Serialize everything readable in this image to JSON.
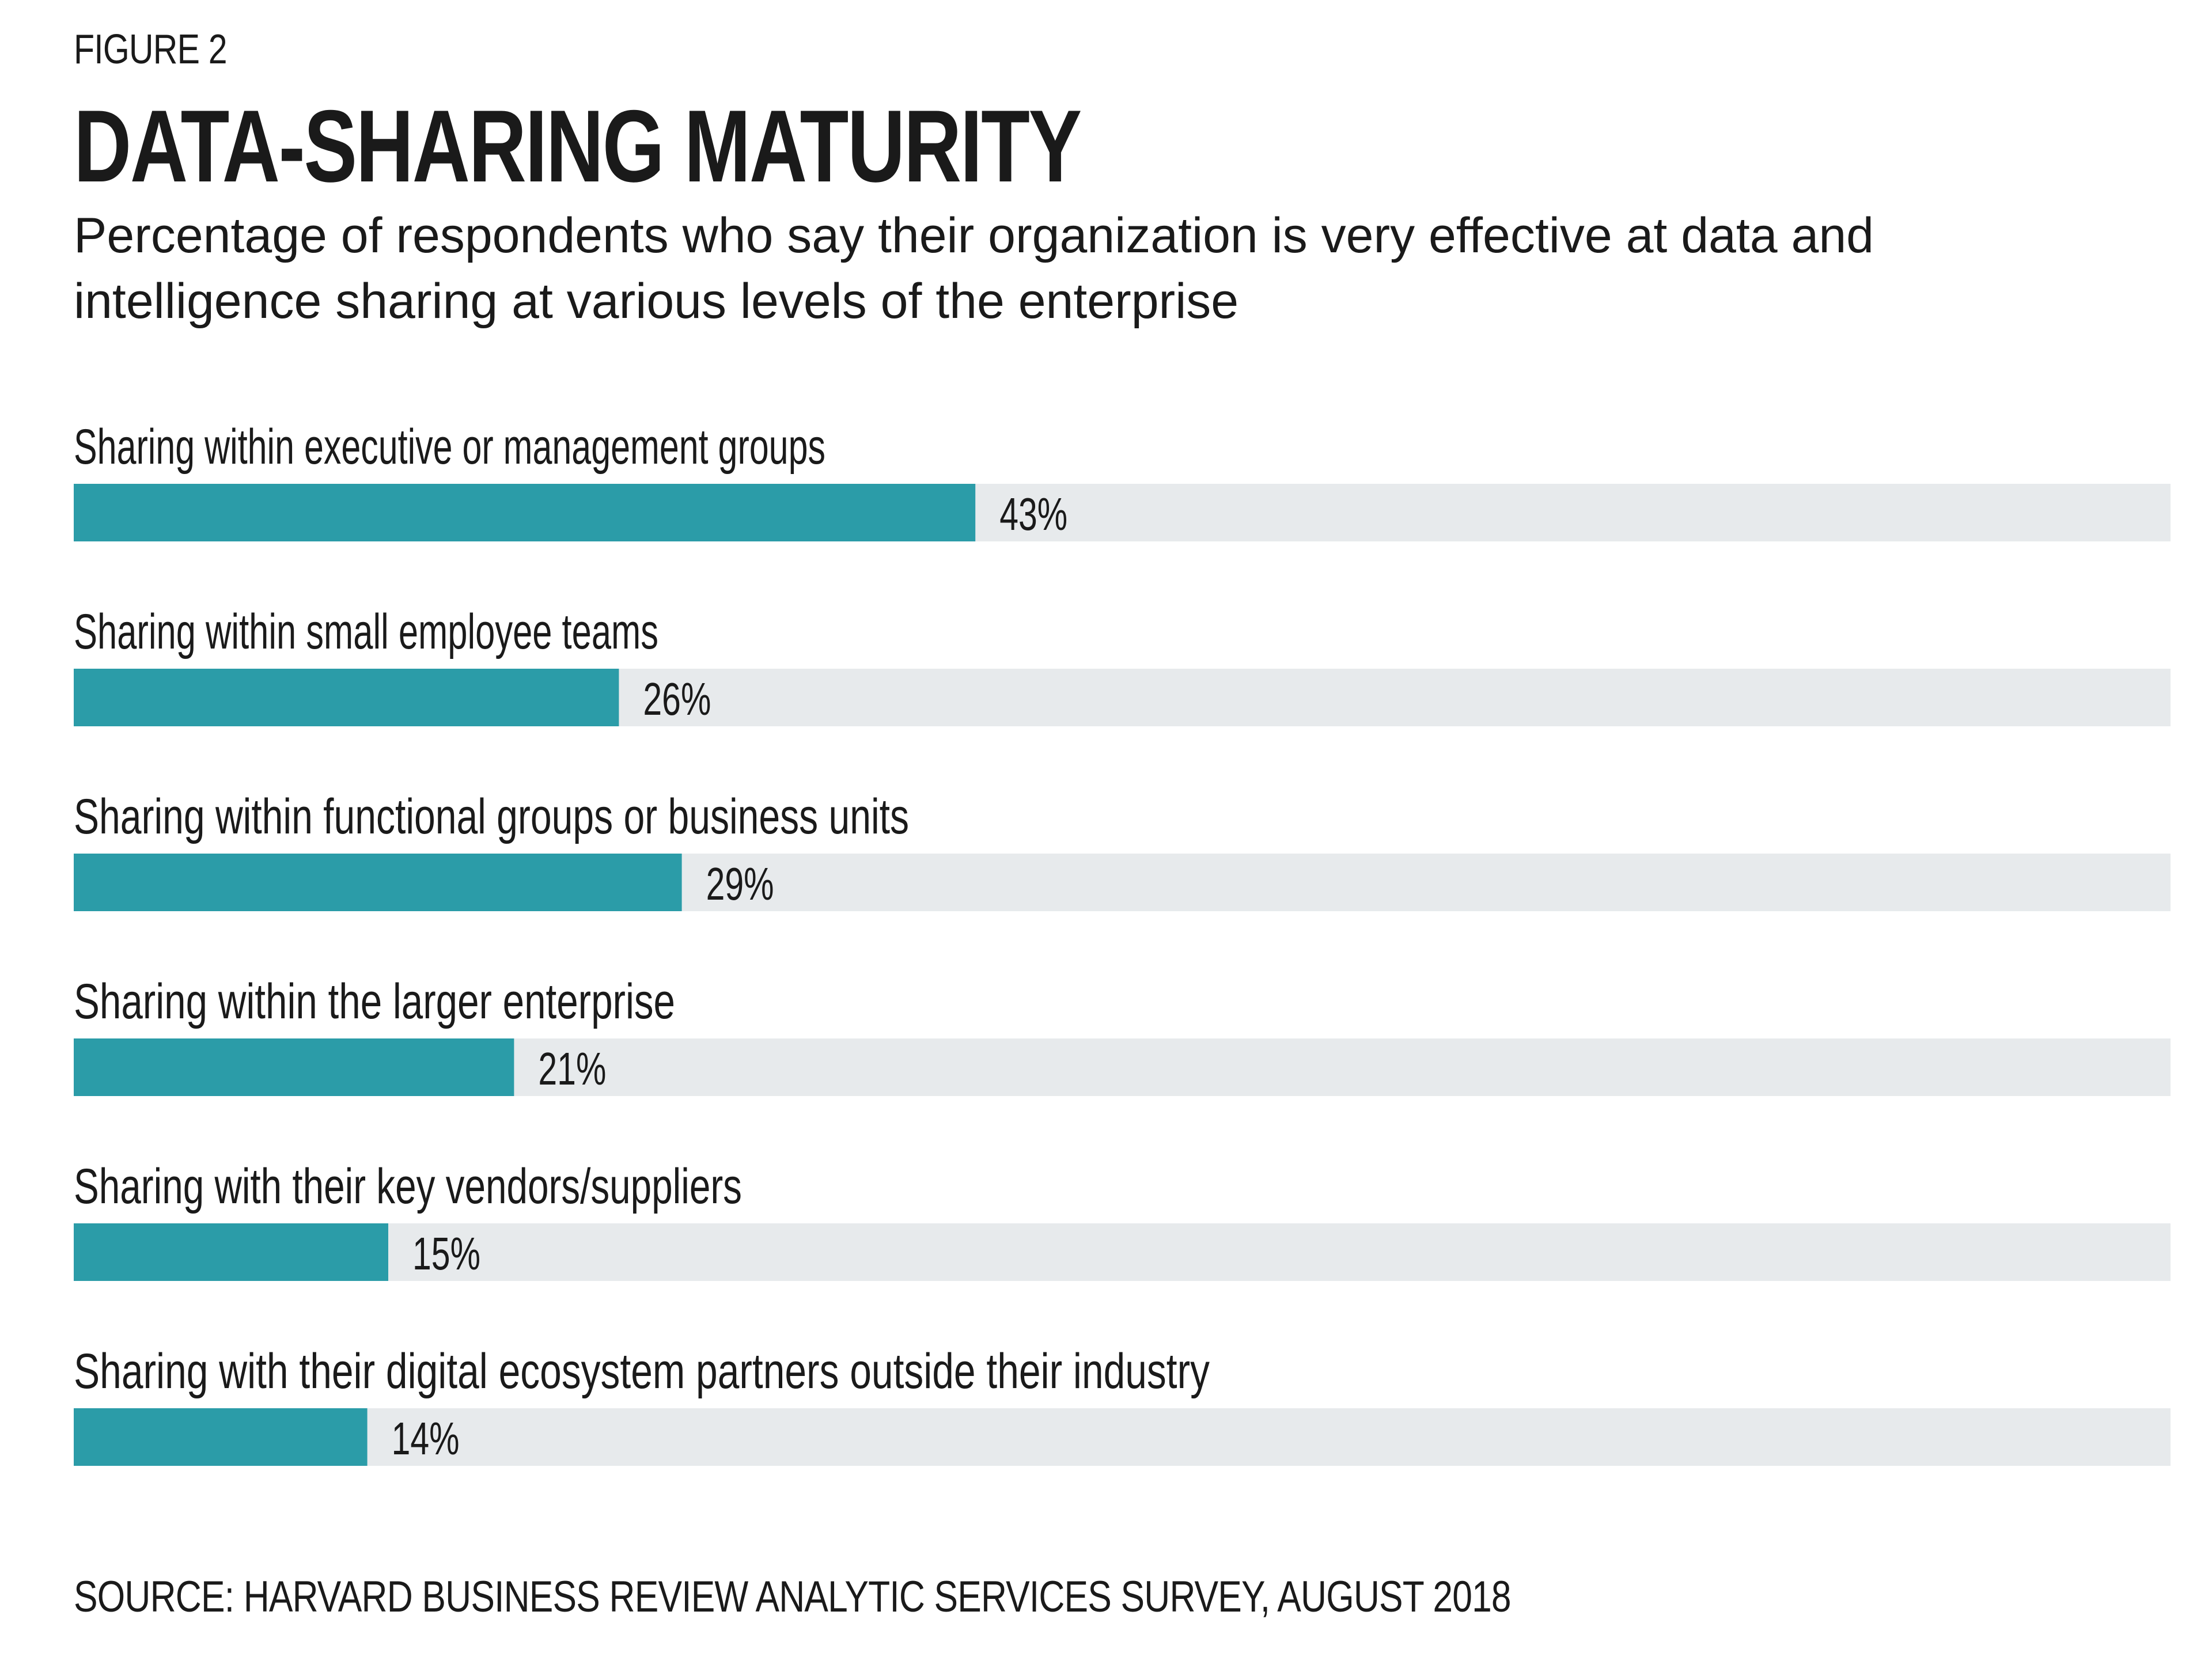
{
  "figure_label": "FIGURE 2",
  "colors": {
    "bar": "#2b9ca8",
    "track": "#e7eaec",
    "text": "#1a1a1a"
  },
  "chart_data": {
    "type": "bar",
    "orientation": "horizontal",
    "title": "DATA-SHARING MATURITY",
    "subtitle": "Percentage of respondents who say their organization is very effective at data and intelligence sharing at various levels of the enterprise",
    "categories": [
      "Sharing within executive or management groups",
      "Sharing within small employee teams",
      "Sharing within functional groups or business units",
      "Sharing within the larger enterprise",
      "Sharing with their key vendors/suppliers",
      "Sharing with their digital ecosystem partners outside their industry"
    ],
    "values": [
      43,
      26,
      29,
      21,
      15,
      14
    ],
    "value_labels": [
      "43%",
      "26%",
      "29%",
      "21%",
      "15%",
      "14%"
    ],
    "xlim": [
      0,
      100
    ],
    "grid": false,
    "legend": "none"
  },
  "source": "SOURCE: HARVARD BUSINESS REVIEW ANALYTIC SERVICES SURVEY, AUGUST 2018"
}
